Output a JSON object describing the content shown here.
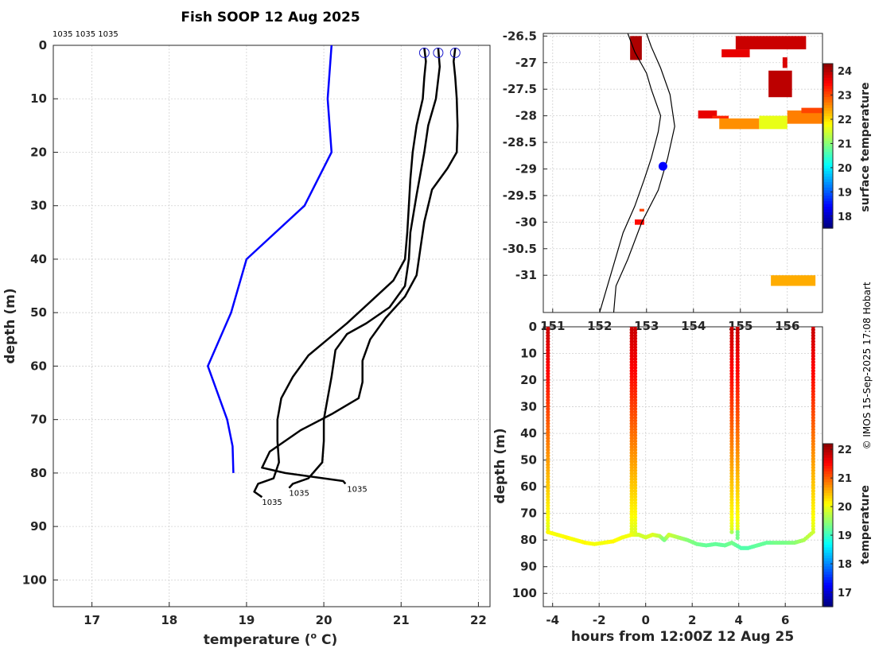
{
  "chart_data": [
    {
      "type": "line",
      "title": "Fish SOOP 12 Aug 2025",
      "xlabel": "temperature (",
      "xlabel_sup": "o",
      "xlabel_end": " C)",
      "ylabel": "depth (m)",
      "xlim": [
        16.5,
        22.15
      ],
      "ylim": [
        0,
        105
      ],
      "xticks": [
        "17",
        "18",
        "19",
        "20",
        "21",
        "22"
      ],
      "yticks": [
        "0",
        "10",
        "20",
        "30",
        "40",
        "50",
        "60",
        "70",
        "80",
        "90",
        "100"
      ],
      "top_annotation": "1035 1035 1035",
      "climatology": {
        "color": "#0000ff",
        "points": [
          [
            20.1,
            0
          ],
          [
            20.05,
            10
          ],
          [
            20.1,
            20
          ],
          [
            19.75,
            30
          ],
          [
            19.0,
            40
          ],
          [
            18.8,
            50
          ],
          [
            18.5,
            60
          ],
          [
            18.75,
            70
          ],
          [
            18.82,
            75
          ],
          [
            18.83,
            80
          ]
        ]
      },
      "profiles": [
        {
          "label": "1035",
          "points": [
            [
              21.3,
              0.5
            ],
            [
              21.32,
              3
            ],
            [
              21.3,
              6
            ],
            [
              21.28,
              10
            ],
            [
              21.2,
              15
            ],
            [
              21.15,
              20
            ],
            [
              21.12,
              25
            ],
            [
              21.1,
              30
            ],
            [
              21.08,
              35
            ],
            [
              21.05,
              40
            ],
            [
              20.9,
              44
            ],
            [
              20.6,
              48
            ],
            [
              20.3,
              52
            ],
            [
              20.05,
              55
            ],
            [
              19.8,
              58
            ],
            [
              19.6,
              62
            ],
            [
              19.45,
              66
            ],
            [
              19.4,
              70
            ],
            [
              19.4,
              74
            ],
            [
              19.42,
              78
            ],
            [
              19.35,
              81
            ],
            [
              19.15,
              82
            ],
            [
              19.1,
              83.5
            ],
            [
              19.2,
              84.5
            ]
          ]
        },
        {
          "label": "1035",
          "points": [
            [
              21.48,
              0.5
            ],
            [
              21.5,
              4
            ],
            [
              21.45,
              10
            ],
            [
              21.35,
              15
            ],
            [
              21.3,
              20
            ],
            [
              21.2,
              28
            ],
            [
              21.12,
              35
            ],
            [
              21.1,
              40
            ],
            [
              21.05,
              45
            ],
            [
              20.85,
              49
            ],
            [
              20.55,
              52
            ],
            [
              20.3,
              54
            ],
            [
              20.15,
              57
            ],
            [
              20.1,
              62
            ],
            [
              20.05,
              66
            ],
            [
              20.0,
              70
            ],
            [
              20.0,
              74
            ],
            [
              19.98,
              78
            ],
            [
              19.8,
              81
            ],
            [
              19.6,
              82
            ],
            [
              19.55,
              82.8
            ]
          ]
        },
        {
          "label": "1035",
          "points": [
            [
              21.7,
              0.5
            ],
            [
              21.68,
              3
            ],
            [
              21.7,
              6
            ],
            [
              21.72,
              10
            ],
            [
              21.73,
              15
            ],
            [
              21.72,
              20
            ],
            [
              21.6,
              23
            ],
            [
              21.4,
              27
            ],
            [
              21.3,
              33
            ],
            [
              21.25,
              38
            ],
            [
              21.2,
              43
            ],
            [
              21.05,
              47
            ],
            [
              20.8,
              51
            ],
            [
              20.6,
              55
            ],
            [
              20.5,
              59
            ],
            [
              20.5,
              63
            ],
            [
              20.45,
              66
            ],
            [
              20.1,
              69
            ],
            [
              19.7,
              72
            ],
            [
              19.3,
              76
            ],
            [
              19.2,
              79
            ],
            [
              19.5,
              80
            ],
            [
              20.0,
              81
            ],
            [
              20.25,
              81.5
            ],
            [
              20.28,
              82.0
            ]
          ]
        }
      ]
    },
    {
      "type": "heatmap",
      "xlim": [
        150.8,
        156.75
      ],
      "ylim": [
        -31.7,
        -26.45
      ],
      "xticks": [
        "151",
        "152",
        "153",
        "154",
        "155",
        "156"
      ],
      "yticks": [
        "-26.5",
        "-27",
        "-27.5",
        "-28",
        "-28.5",
        "-29",
        "-29.5",
        "-30",
        "-30.5",
        "-31"
      ],
      "colorbar_label": "surface temperature",
      "colorbar_ticks": [
        "18",
        "19",
        "20",
        "21",
        "22",
        "23",
        "24"
      ],
      "crange": [
        17.5,
        24.3
      ],
      "marker": {
        "lon": 153.35,
        "lat": -28.95,
        "color": "#0000ff"
      }
    },
    {
      "type": "scatter",
      "xlabel": "hours from 12:00Z 12 Aug 25",
      "ylabel": "depth (m)",
      "xlim": [
        -4.4,
        7.6
      ],
      "ylim": [
        0,
        105
      ],
      "xticks": [
        "-4",
        "-2",
        "0",
        "2",
        "4",
        "6"
      ],
      "yticks": [
        "0",
        "10",
        "20",
        "30",
        "40",
        "50",
        "60",
        "70",
        "80",
        "90",
        "100"
      ],
      "colorbar_label": "temperature",
      "colorbar_ticks": [
        "17",
        "18",
        "19",
        "20",
        "21",
        "22"
      ],
      "crange": [
        16.5,
        22.2
      ]
    }
  ],
  "credit": "© IMOS 15-Sep-2025 17:08 Hobart"
}
